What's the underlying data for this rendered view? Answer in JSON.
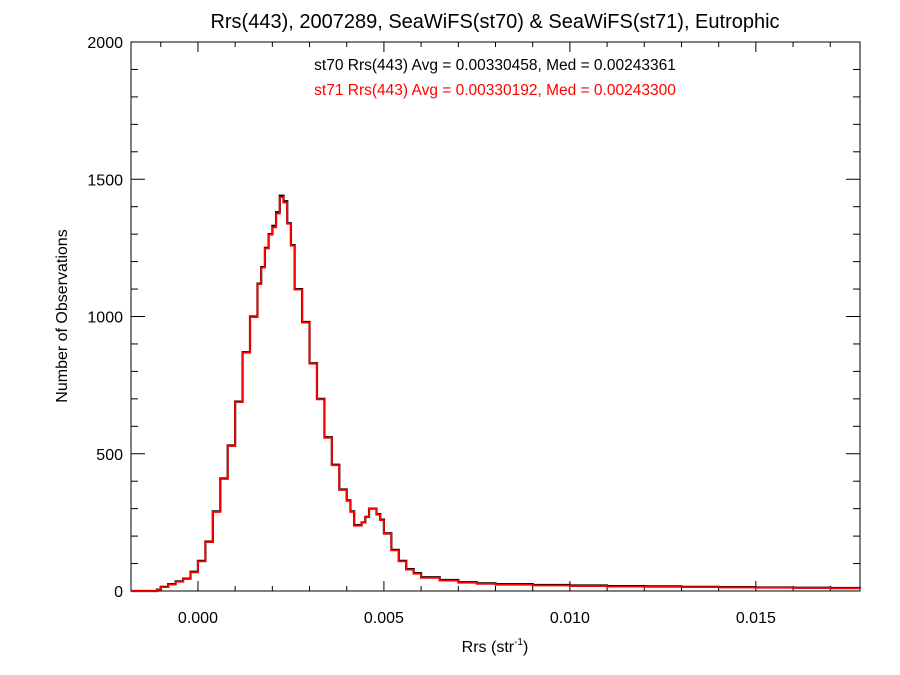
{
  "chart_data": {
    "type": "histogram-step",
    "title": "Rrs(443), 2007289, SeaWiFS(st70) & SeaWiFS(st71), Eutrophic",
    "xlabel": "Rrs (str",
    "xlabel_superscript": "-1",
    "xlabel_suffix": ")",
    "ylabel": "Number of Observations",
    "xlim": [
      -0.0018,
      0.0178
    ],
    "ylim": [
      0,
      2000
    ],
    "xticks": [
      0.0,
      0.005,
      0.01,
      0.015
    ],
    "xtick_labels": [
      "0.000",
      "0.005",
      "0.010",
      "0.015"
    ],
    "yticks": [
      0,
      500,
      1000,
      1500,
      2000
    ],
    "ytick_labels": [
      "0",
      "500",
      "1000",
      "1500",
      "2000"
    ],
    "annotations": [
      {
        "text": "st70 Rrs(443) Avg = 0.00330458, Med = 0.00243361",
        "color": "#000000"
      },
      {
        "text": "st71 Rrs(443) Avg = 0.00330192, Med = 0.00243300",
        "color": "#ff0000"
      }
    ],
    "series": [
      {
        "color": "#000000",
        "x": [
          -0.0018,
          -0.0011,
          -0.001,
          -0.0008,
          -0.0006,
          -0.0004,
          -0.0002,
          0.0,
          0.0002,
          0.0004,
          0.0006,
          0.0008,
          0.001,
          0.0012,
          0.0014,
          0.0016,
          0.0017,
          0.0018,
          0.0019,
          0.002,
          0.0021,
          0.0022,
          0.0023,
          0.0024,
          0.0025,
          0.0026,
          0.0028,
          0.003,
          0.0032,
          0.0034,
          0.0036,
          0.0038,
          0.004,
          0.0041,
          0.0042,
          0.0043,
          0.0044,
          0.0045,
          0.0046,
          0.0047,
          0.0048,
          0.0049,
          0.005,
          0.0052,
          0.0054,
          0.0056,
          0.0058,
          0.006,
          0.0065,
          0.007,
          0.0075,
          0.008,
          0.009,
          0.01,
          0.011,
          0.012,
          0.013,
          0.014,
          0.015,
          0.016,
          0.017,
          0.0178
        ],
        "y": [
          0,
          5,
          15,
          25,
          35,
          45,
          70,
          110,
          180,
          290,
          410,
          530,
          690,
          870,
          1000,
          1120,
          1180,
          1250,
          1300,
          1330,
          1380,
          1440,
          1420,
          1340,
          1260,
          1100,
          980,
          830,
          700,
          560,
          460,
          370,
          330,
          290,
          240,
          240,
          250,
          270,
          300,
          300,
          280,
          260,
          210,
          150,
          110,
          80,
          65,
          50,
          40,
          32,
          28,
          25,
          22,
          20,
          18,
          17,
          15,
          14,
          13,
          12,
          11,
          10
        ]
      },
      {
        "color": "#ff0000",
        "x": [
          -0.0018,
          -0.0011,
          -0.001,
          -0.0008,
          -0.0006,
          -0.0004,
          -0.0002,
          0.0,
          0.0002,
          0.0004,
          0.0006,
          0.0008,
          0.001,
          0.0012,
          0.0014,
          0.0016,
          0.0017,
          0.0018,
          0.0019,
          0.002,
          0.0021,
          0.0022,
          0.0023,
          0.0024,
          0.0025,
          0.0026,
          0.0028,
          0.003,
          0.0032,
          0.0034,
          0.0036,
          0.0038,
          0.004,
          0.0041,
          0.0042,
          0.0043,
          0.0044,
          0.0045,
          0.0046,
          0.0047,
          0.0048,
          0.0049,
          0.005,
          0.0052,
          0.0054,
          0.0056,
          0.0058,
          0.006,
          0.0065,
          0.007,
          0.0075,
          0.008,
          0.009,
          0.01,
          0.011,
          0.012,
          0.013,
          0.014,
          0.015,
          0.016,
          0.017,
          0.0178
        ],
        "y": [
          0,
          5,
          14,
          24,
          34,
          44,
          68,
          108,
          178,
          288,
          408,
          528,
          688,
          868,
          998,
          1118,
          1178,
          1248,
          1298,
          1325,
          1375,
          1435,
          1415,
          1338,
          1258,
          1098,
          978,
          828,
          698,
          558,
          458,
          368,
          328,
          288,
          238,
          238,
          250,
          270,
          300,
          300,
          278,
          258,
          208,
          148,
          108,
          78,
          63,
          48,
          38,
          30,
          26,
          23,
          20,
          18,
          16,
          15,
          14,
          13,
          12,
          11,
          10,
          9
        ]
      }
    ]
  }
}
